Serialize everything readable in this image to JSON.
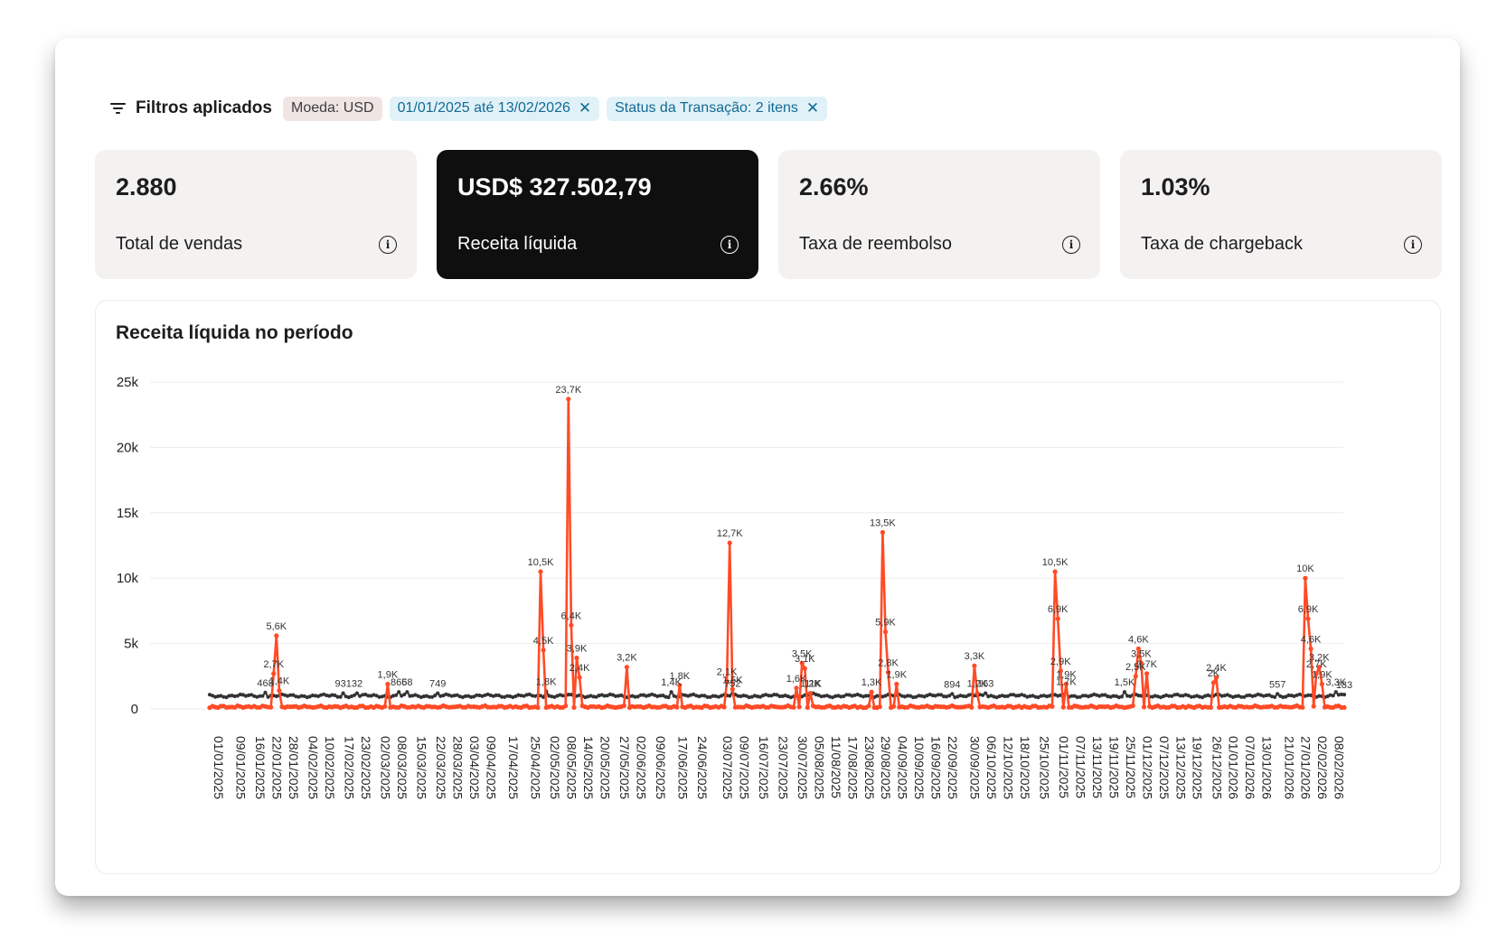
{
  "filters": {
    "title": "Filtros aplicados",
    "chips": [
      {
        "label": "Moeda: USD",
        "removable": false
      },
      {
        "label": "01/01/2025 até 13/02/2026",
        "removable": true
      },
      {
        "label": "Status da Transação: 2 itens",
        "removable": true
      }
    ]
  },
  "metrics": [
    {
      "value": "2.880",
      "label": "Total de vendas",
      "highlight": false
    },
    {
      "value": "USD$ 327.502,79",
      "label": "Receita líquida",
      "highlight": true
    },
    {
      "value": "2.66%",
      "label": "Taxa de reembolso",
      "highlight": false
    },
    {
      "value": "1.03%",
      "label": "Taxa de chargeback",
      "highlight": false
    }
  ],
  "colors": {
    "series_accent": "#ff4b26",
    "series_dark": "#333333",
    "highlight_card": "#0f0f0f"
  },
  "chart_data": {
    "type": "line",
    "title": "Receita líquida no período",
    "ylim": [
      0,
      25000
    ],
    "y_ticks": [
      "0",
      "5k",
      "10k",
      "15k",
      "20k",
      "25k"
    ],
    "x_range": [
      "01/01/2025",
      "13/02/2026"
    ],
    "x_ticks": [
      "01/01/2025",
      "09/01/2025",
      "16/01/2025",
      "22/01/2025",
      "28/01/2025",
      "04/02/2025",
      "10/02/2025",
      "17/02/2025",
      "23/02/2025",
      "02/03/2025",
      "08/03/2025",
      "15/03/2025",
      "22/03/2025",
      "28/03/2025",
      "03/04/2025",
      "09/04/2025",
      "17/04/2025",
      "25/04/2025",
      "02/05/2025",
      "08/05/2025",
      "14/05/2025",
      "20/05/2025",
      "27/05/2025",
      "02/06/2025",
      "09/06/2025",
      "17/06/2025",
      "24/06/2025",
      "03/07/2025",
      "09/07/2025",
      "16/07/2025",
      "23/07/2025",
      "30/07/2025",
      "05/08/2025",
      "11/08/2025",
      "17/08/2025",
      "23/08/2025",
      "29/08/2025",
      "04/09/2025",
      "10/09/2025",
      "16/09/2025",
      "22/09/2025",
      "30/09/2025",
      "06/10/2025",
      "12/10/2025",
      "18/10/2025",
      "25/10/2025",
      "01/11/2025",
      "07/11/2025",
      "13/11/2025",
      "19/11/2025",
      "25/11/2025",
      "01/12/2025",
      "07/12/2025",
      "13/12/2025",
      "19/12/2025",
      "26/12/2025",
      "01/01/2026",
      "07/01/2026",
      "13/01/2026",
      "21/01/2026",
      "27/01/2026",
      "02/02/2026",
      "08/02/2026"
    ],
    "series": [
      {
        "color": "#ff4b26",
        "baseline": 100,
        "peaks": [
          {
            "x": "24/01/2025",
            "y": 2700,
            "label": "2,7K"
          },
          {
            "x": "25/01/2025",
            "y": 5600,
            "label": "5,6K"
          },
          {
            "x": "26/01/2025",
            "y": 1400,
            "label": "1,4K"
          },
          {
            "x": "06/03/2025",
            "y": 1900,
            "label": "1,9K"
          },
          {
            "x": "30/04/2025",
            "y": 10500,
            "label": "10,5K"
          },
          {
            "x": "01/05/2025",
            "y": 4500,
            "label": "4,5K"
          },
          {
            "x": "10/05/2025",
            "y": 23700,
            "label": "23,7K"
          },
          {
            "x": "11/05/2025",
            "y": 6400,
            "label": "6,4K"
          },
          {
            "x": "13/05/2025",
            "y": 3900,
            "label": "3,9K"
          },
          {
            "x": "14/05/2025",
            "y": 2400,
            "label": "2,4K"
          },
          {
            "x": "31/05/2025",
            "y": 3200,
            "label": "3,2K"
          },
          {
            "x": "19/06/2025",
            "y": 1800,
            "label": "1,8K"
          },
          {
            "x": "06/07/2025",
            "y": 2100,
            "label": "2,1K"
          },
          {
            "x": "07/07/2025",
            "y": 12700,
            "label": "12,7K"
          },
          {
            "x": "08/07/2025",
            "y": 1500,
            "label": "1,5K"
          },
          {
            "x": "31/07/2025",
            "y": 1600,
            "label": "1,6K"
          },
          {
            "x": "02/08/2025",
            "y": 3500,
            "label": "3,5K"
          },
          {
            "x": "03/08/2025",
            "y": 3100,
            "label": "3,1K"
          },
          {
            "x": "05/08/2025",
            "y": 1200,
            "label": "1,2K"
          },
          {
            "x": "27/08/2025",
            "y": 1300,
            "label": "1,3K"
          },
          {
            "x": "31/08/2025",
            "y": 13500,
            "label": "13,5K"
          },
          {
            "x": "01/09/2025",
            "y": 5900,
            "label": "5,9K"
          },
          {
            "x": "02/09/2025",
            "y": 2800,
            "label": "2,8K"
          },
          {
            "x": "05/09/2025",
            "y": 1900,
            "label": "1,9K"
          },
          {
            "x": "03/10/2025",
            "y": 3300,
            "label": "3,3K"
          },
          {
            "x": "04/10/2025",
            "y": 1200,
            "label": "1,2K"
          },
          {
            "x": "01/11/2025",
            "y": 10500,
            "label": "10,5K"
          },
          {
            "x": "02/11/2025",
            "y": 6900,
            "label": "6,9K"
          },
          {
            "x": "03/11/2025",
            "y": 2900,
            "label": "2,9K"
          },
          {
            "x": "05/11/2025",
            "y": 1900,
            "label": "1,9K"
          },
          {
            "x": "30/11/2025",
            "y": 2500,
            "label": "2,5K"
          },
          {
            "x": "01/12/2025",
            "y": 4600,
            "label": "4,6K"
          },
          {
            "x": "02/12/2025",
            "y": 3500,
            "label": "3,5K"
          },
          {
            "x": "04/12/2025",
            "y": 2700,
            "label": "2,7K"
          },
          {
            "x": "29/12/2025",
            "y": 2400,
            "label": "2,4K"
          },
          {
            "x": "28/12/2025",
            "y": 2000,
            "label": "2K"
          },
          {
            "x": "30/01/2026",
            "y": 10000,
            "label": "10K"
          },
          {
            "x": "31/01/2026",
            "y": 6900,
            "label": "6,9K"
          },
          {
            "x": "01/02/2026",
            "y": 4600,
            "label": "4,6K"
          },
          {
            "x": "03/02/2026",
            "y": 2700,
            "label": "2,7K"
          },
          {
            "x": "04/02/2026",
            "y": 3200,
            "label": "3,2K"
          },
          {
            "x": "05/02/2026",
            "y": 1900,
            "label": "1,9K"
          }
        ]
      },
      {
        "color": "#333333",
        "baseline": 1000,
        "peaks": [
          {
            "x": "21/01/2025",
            "y": 1250,
            "label": "468"
          },
          {
            "x": "18/02/2025",
            "y": 1200,
            "label": "931"
          },
          {
            "x": "23/02/2025",
            "y": 1200,
            "label": "32"
          },
          {
            "x": "10/03/2025",
            "y": 1300,
            "label": "866"
          },
          {
            "x": "13/03/2025",
            "y": 1300,
            "label": "58"
          },
          {
            "x": "24/03/2025",
            "y": 1200,
            "label": "749"
          },
          {
            "x": "02/05/2025",
            "y": 1350,
            "label": "1,8K"
          },
          {
            "x": "16/06/2025",
            "y": 1300,
            "label": "1,4K"
          },
          {
            "x": "08/07/2025",
            "y": 1200,
            "label": "752"
          },
          {
            "x": "06/08/2025",
            "y": 1200,
            "label": "11K"
          },
          {
            "x": "25/09/2025",
            "y": 1150,
            "label": "894"
          },
          {
            "x": "07/10/2025",
            "y": 1200,
            "label": "163"
          },
          {
            "x": "05/11/2025",
            "y": 1350,
            "label": "1,7K"
          },
          {
            "x": "26/11/2025",
            "y": 1300,
            "label": "1,5K"
          },
          {
            "x": "20/01/2026",
            "y": 1150,
            "label": "557"
          },
          {
            "x": "10/02/2026",
            "y": 1300,
            "label": "3,3K"
          },
          {
            "x": "13/02/2026",
            "y": 1100,
            "label": "183"
          }
        ]
      }
    ]
  }
}
